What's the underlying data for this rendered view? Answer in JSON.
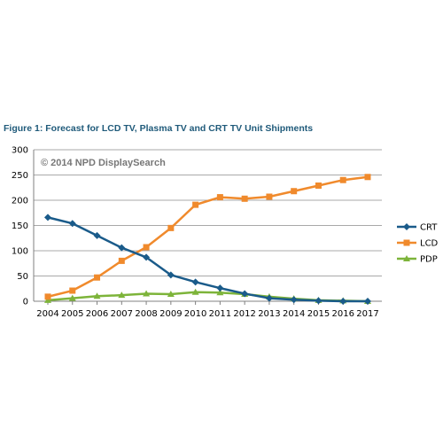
{
  "figure_title": "Figure 1: Forecast for LCD TV, Plasma TV and CRT TV Unit Shipments",
  "watermark": "© 2014 NPD DisplaySearch",
  "chart_data": {
    "type": "line",
    "title": "",
    "xlabel": "",
    "ylabel": "",
    "x": [
      "2004",
      "2005",
      "2006",
      "2007",
      "2008",
      "2009",
      "2010",
      "2011",
      "2012",
      "2013",
      "2014",
      "2015",
      "2016",
      "2017"
    ],
    "ylim": [
      0,
      300
    ],
    "yticks": [
      0,
      50,
      100,
      150,
      200,
      250,
      300
    ],
    "grid": true,
    "legend_position": "right",
    "series": [
      {
        "name": "CRT",
        "color": "#1a5b8a",
        "marker": "diamond",
        "values": [
          166,
          154,
          130,
          106,
          87,
          52,
          38,
          26,
          15,
          6,
          3,
          1,
          0,
          0
        ]
      },
      {
        "name": "LCD",
        "color": "#f08a2c",
        "marker": "square",
        "values": [
          9,
          21,
          47,
          80,
          107,
          145,
          191,
          206,
          203,
          207,
          218,
          229,
          240,
          246
        ]
      },
      {
        "name": "PDP",
        "color": "#7db43a",
        "marker": "triangle",
        "values": [
          2,
          6,
          10,
          12,
          15,
          14,
          18,
          17,
          14,
          9,
          5,
          2,
          1,
          0
        ]
      }
    ]
  }
}
